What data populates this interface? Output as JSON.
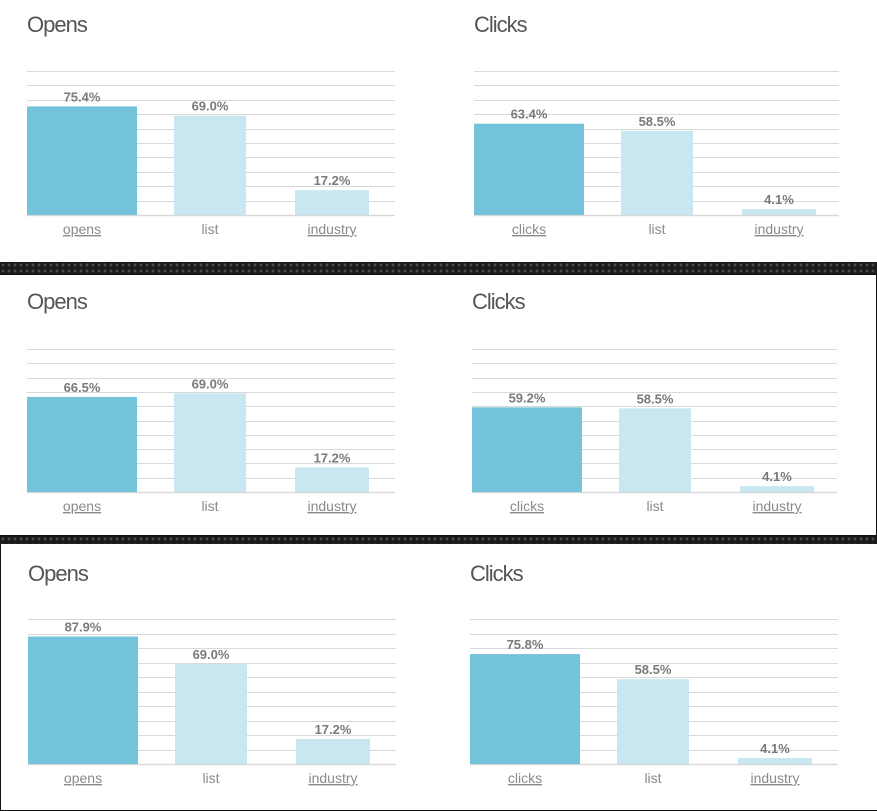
{
  "colors": {
    "primary": "#73c3da",
    "secondary": "#c8e7f0",
    "grid": "#d9d9d9",
    "link_red": "#e0552a",
    "link_gray": "#8a8a8a"
  },
  "chart_data": [
    {
      "type": "bar",
      "title": "Opens",
      "categories": [
        "opens",
        "list",
        "industry"
      ],
      "values": [
        75.4,
        69.0,
        17.2
      ],
      "data_labels": [
        "75.4%",
        "69.0%",
        "17.2%"
      ]
    },
    {
      "type": "bar",
      "title": "Clicks",
      "categories": [
        "clicks",
        "list",
        "industry"
      ],
      "values": [
        63.4,
        58.5,
        4.1
      ],
      "data_labels": [
        "63.4%",
        "58.5%",
        "4.1%"
      ]
    },
    {
      "type": "bar",
      "title": "Opens",
      "categories": [
        "opens",
        "list",
        "industry"
      ],
      "values": [
        66.5,
        69.0,
        17.2
      ],
      "data_labels": [
        "66.5%",
        "69.0%",
        "17.2%"
      ]
    },
    {
      "type": "bar",
      "title": "Clicks",
      "categories": [
        "clicks",
        "list",
        "industry"
      ],
      "values": [
        59.2,
        58.5,
        4.1
      ],
      "data_labels": [
        "59.2%",
        "58.5%",
        "4.1%"
      ]
    },
    {
      "type": "bar",
      "title": "Opens",
      "categories": [
        "opens",
        "list",
        "industry"
      ],
      "values": [
        87.9,
        69.0,
        17.2
      ],
      "data_labels": [
        "87.9%",
        "69.0%",
        "17.2%"
      ]
    },
    {
      "type": "bar",
      "title": "Clicks",
      "categories": [
        "clicks",
        "list",
        "industry"
      ],
      "values": [
        75.8,
        58.5,
        4.1
      ],
      "data_labels": [
        "75.8%",
        "58.5%",
        "4.1%"
      ]
    }
  ]
}
